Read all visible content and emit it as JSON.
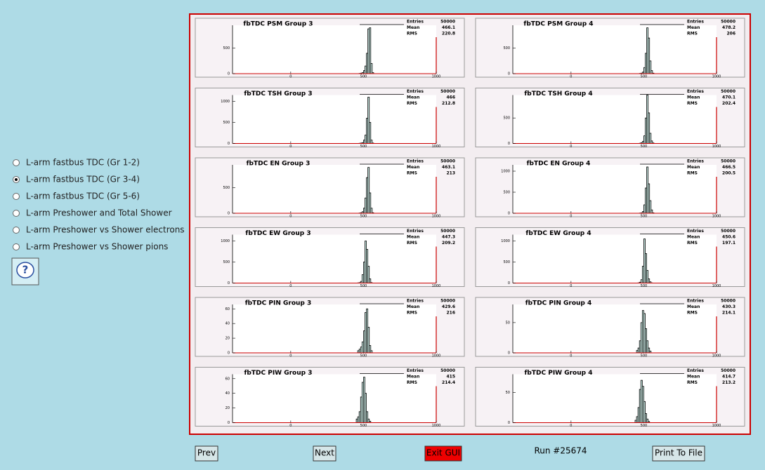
{
  "options": [
    "L-arm fastbus TDC (Gr 1-2)",
    "L-arm fastbus TDC (Gr 3-4)",
    "L-arm fastbus TDC (Gr 5-6)",
    "L-arm Preshower and Total Shower",
    "L-arm Preshower vs Shower electrons",
    "L-arm Preshower vs Shower pions"
  ],
  "help": "?",
  "buttons": {
    "prev": "Prev",
    "next": "Next",
    "exit": "Exit GUI",
    "print": "Print To File"
  },
  "run": "Run #25674",
  "chart_data": [
    {
      "type": "histogram",
      "title": "fbTDC PSM Group 3",
      "stats": [
        {
          "label": "Entries",
          "value": 50000
        },
        {
          "label": "Mean",
          "value": 466.1
        },
        {
          "label": "RMS",
          "value": 220.8
        }
      ],
      "xlim": [
        -400,
        1000
      ],
      "xticks": [
        0,
        500,
        1000
      ],
      "ylim": [
        0,
        950
      ],
      "yticks": [
        0,
        500
      ],
      "bins": [
        470,
        480,
        490,
        500,
        510,
        520,
        530,
        540,
        550,
        560,
        570
      ],
      "counts": [
        5,
        10,
        20,
        60,
        150,
        400,
        880,
        900,
        200,
        20
      ]
    },
    {
      "type": "histogram",
      "title": "fbTDC PSM Group 4",
      "stats": [
        {
          "label": "Entries",
          "value": 50000
        },
        {
          "label": "Mean",
          "value": 478.2
        },
        {
          "label": "RMS",
          "value": 206
        }
      ],
      "xlim": [
        -400,
        1000
      ],
      "xticks": [
        0,
        500,
        1000
      ],
      "ylim": [
        0,
        950
      ],
      "yticks": [
        0,
        500
      ],
      "bins": [
        470,
        480,
        490,
        500,
        510,
        520,
        530,
        540,
        550,
        560,
        570
      ],
      "counts": [
        5,
        10,
        30,
        120,
        400,
        900,
        700,
        250,
        60,
        10
      ]
    },
    {
      "type": "histogram",
      "title": "fbTDC TSH Group 3",
      "stats": [
        {
          "label": "Entries",
          "value": 50000
        },
        {
          "label": "Mean",
          "value": 466
        },
        {
          "label": "RMS",
          "value": 212.8
        }
      ],
      "xlim": [
        -400,
        1000
      ],
      "xticks": [
        0,
        500,
        1000
      ],
      "ylim": [
        0,
        1150
      ],
      "yticks": [
        0,
        500,
        1000
      ],
      "bins": [
        470,
        480,
        490,
        500,
        510,
        520,
        530,
        540,
        550,
        560,
        570
      ],
      "counts": [
        5,
        10,
        20,
        80,
        200,
        600,
        1100,
        500,
        80,
        10
      ]
    },
    {
      "type": "histogram",
      "title": "fbTDC TSH Group 4",
      "stats": [
        {
          "label": "Entries",
          "value": 50000
        },
        {
          "label": "Mean",
          "value": 470.1
        },
        {
          "label": "RMS",
          "value": 202.4
        }
      ],
      "xlim": [
        -400,
        1000
      ],
      "xticks": [
        0,
        500,
        1000
      ],
      "ylim": [
        0,
        950
      ],
      "yticks": [
        0,
        500
      ],
      "bins": [
        470,
        480,
        490,
        500,
        510,
        520,
        530,
        540,
        550,
        560,
        570
      ],
      "counts": [
        5,
        15,
        40,
        150,
        500,
        950,
        600,
        200,
        50,
        10
      ]
    },
    {
      "type": "histogram",
      "title": "fbTDC EN Group 3",
      "stats": [
        {
          "label": "Entries",
          "value": 50000
        },
        {
          "label": "Mean",
          "value": 463.1
        },
        {
          "label": "RMS",
          "value": 213
        }
      ],
      "xlim": [
        -400,
        1000
      ],
      "xticks": [
        0,
        500,
        1000
      ],
      "ylim": [
        0,
        950
      ],
      "yticks": [
        0,
        500
      ],
      "bins": [
        470,
        480,
        490,
        500,
        510,
        520,
        530,
        540,
        550,
        560,
        570
      ],
      "counts": [
        5,
        10,
        30,
        100,
        300,
        700,
        900,
        400,
        100,
        10
      ]
    },
    {
      "type": "histogram",
      "title": "fbTDC EN Group 4",
      "stats": [
        {
          "label": "Entries",
          "value": 50000
        },
        {
          "label": "Mean",
          "value": 466.5
        },
        {
          "label": "RMS",
          "value": 200.5
        }
      ],
      "xlim": [
        -400,
        1000
      ],
      "xticks": [
        0,
        500,
        1000
      ],
      "ylim": [
        0,
        1150
      ],
      "yticks": [
        0,
        500,
        1000
      ],
      "bins": [
        470,
        480,
        490,
        500,
        510,
        520,
        530,
        540,
        550,
        560,
        570
      ],
      "counts": [
        5,
        10,
        40,
        200,
        600,
        1100,
        700,
        300,
        80,
        10
      ]
    },
    {
      "type": "histogram",
      "title": "fbTDC EW Group 3",
      "stats": [
        {
          "label": "Entries",
          "value": 50000
        },
        {
          "label": "Mean",
          "value": 447.3
        },
        {
          "label": "RMS",
          "value": 209.2
        }
      ],
      "xlim": [
        -400,
        1000
      ],
      "xticks": [
        0,
        500,
        1000
      ],
      "ylim": [
        0,
        1150
      ],
      "yticks": [
        0,
        500,
        1000
      ],
      "bins": [
        460,
        470,
        480,
        490,
        500,
        510,
        520,
        530,
        540,
        550,
        560
      ],
      "counts": [
        5,
        10,
        40,
        200,
        500,
        1000,
        800,
        400,
        100,
        10
      ]
    },
    {
      "type": "histogram",
      "title": "fbTDC EW Group 4",
      "stats": [
        {
          "label": "Entries",
          "value": 50000
        },
        {
          "label": "Mean",
          "value": 450.6
        },
        {
          "label": "RMS",
          "value": 197.1
        }
      ],
      "xlim": [
        -400,
        1000
      ],
      "xticks": [
        0,
        500,
        1000
      ],
      "ylim": [
        0,
        1150
      ],
      "yticks": [
        0,
        500,
        1000
      ],
      "bins": [
        460,
        470,
        480,
        490,
        500,
        510,
        520,
        530,
        540,
        550,
        560
      ],
      "counts": [
        5,
        20,
        80,
        400,
        1050,
        700,
        300,
        100,
        30,
        5
      ]
    },
    {
      "type": "histogram",
      "title": "fbTDC PIN Group 3",
      "stats": [
        {
          "label": "Entries",
          "value": 50000
        },
        {
          "label": "Mean",
          "value": 429.6
        },
        {
          "label": "RMS",
          "value": 216
        }
      ],
      "xlim": [
        -400,
        1000
      ],
      "xticks": [
        0,
        500,
        1000
      ],
      "ylim": [
        0,
        66
      ],
      "yticks": [
        0,
        20,
        40,
        60
      ],
      "bins": [
        460,
        470,
        480,
        490,
        500,
        510,
        520,
        530,
        540,
        550,
        560
      ],
      "counts": [
        3,
        5,
        8,
        15,
        30,
        55,
        60,
        35,
        10,
        3
      ]
    },
    {
      "type": "histogram",
      "title": "fbTDC PIN Group 4",
      "stats": [
        {
          "label": "Entries",
          "value": 50000
        },
        {
          "label": "Mean",
          "value": 430.3
        },
        {
          "label": "RMS",
          "value": 214.1
        }
      ],
      "xlim": [
        -400,
        1000
      ],
      "xticks": [
        0,
        500,
        1000
      ],
      "ylim": [
        0,
        80
      ],
      "yticks": [
        0,
        50
      ],
      "bins": [
        450,
        460,
        470,
        480,
        490,
        500,
        510,
        520,
        530,
        540,
        550
      ],
      "counts": [
        4,
        8,
        20,
        50,
        70,
        65,
        40,
        20,
        8,
        3
      ]
    },
    {
      "type": "histogram",
      "title": "fbTDC PIW Group 3",
      "stats": [
        {
          "label": "Entries",
          "value": 50000
        },
        {
          "label": "Mean",
          "value": 415
        },
        {
          "label": "RMS",
          "value": 214.4
        }
      ],
      "xlim": [
        -400,
        1000
      ],
      "xticks": [
        0,
        500,
        1000
      ],
      "ylim": [
        0,
        66
      ],
      "yticks": [
        0,
        20,
        40,
        60
      ],
      "bins": [
        450,
        460,
        470,
        480,
        490,
        500,
        510,
        520,
        530,
        540,
        550
      ],
      "counts": [
        5,
        8,
        15,
        35,
        55,
        62,
        40,
        15,
        5,
        2
      ]
    },
    {
      "type": "histogram",
      "title": "fbTDC PIW Group 4",
      "stats": [
        {
          "label": "Entries",
          "value": 50000
        },
        {
          "label": "Mean",
          "value": 414.7
        },
        {
          "label": "RMS",
          "value": 213.2
        }
      ],
      "xlim": [
        -400,
        1000
      ],
      "xticks": [
        0,
        500,
        1000
      ],
      "ylim": [
        0,
        80
      ],
      "yticks": [
        0,
        50
      ],
      "bins": [
        440,
        450,
        460,
        470,
        480,
        490,
        500,
        510,
        520,
        530,
        540
      ],
      "counts": [
        4,
        10,
        25,
        55,
        70,
        60,
        35,
        15,
        6,
        2
      ]
    }
  ]
}
